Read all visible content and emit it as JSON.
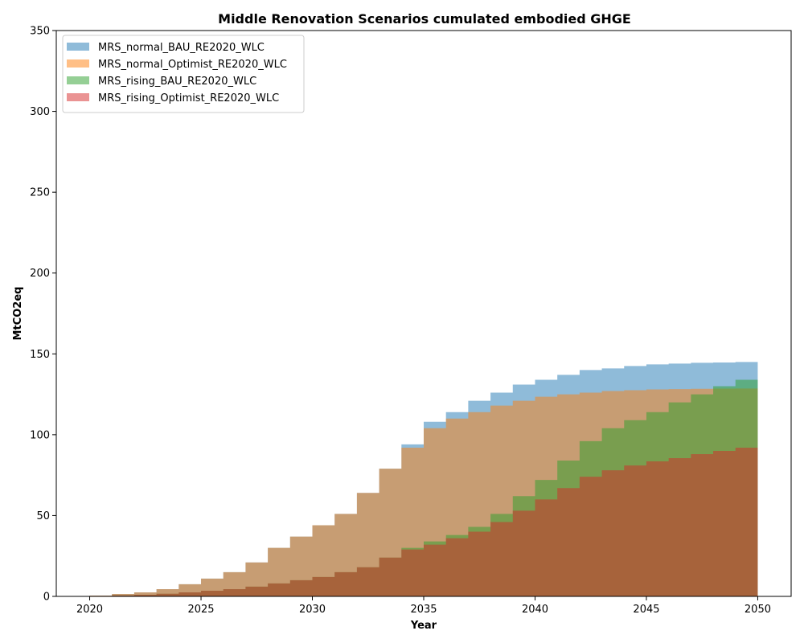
{
  "chart_data": {
    "type": "area",
    "title": "Middle Renovation Scenarios cumulated embodied GHGE",
    "xlabel": "Year",
    "ylabel": "MtCO2eq",
    "xlim": [
      2018.5,
      2051.5
    ],
    "ylim": [
      0,
      350
    ],
    "xticks": [
      2020,
      2025,
      2030,
      2035,
      2040,
      2045,
      2050
    ],
    "yticks": [
      0,
      50,
      100,
      150,
      200,
      250,
      300,
      350
    ],
    "grid": false,
    "legend_position": "top-left",
    "step": "post",
    "x": [
      2020,
      2021,
      2022,
      2023,
      2024,
      2025,
      2026,
      2027,
      2028,
      2029,
      2030,
      2031,
      2032,
      2033,
      2034,
      2035,
      2036,
      2037,
      2038,
      2039,
      2040,
      2041,
      2042,
      2043,
      2044,
      2045,
      2046,
      2047,
      2048,
      2049,
      2050
    ],
    "series": [
      {
        "name": "MRS_normal_BAU_RE2020_WLC",
        "color": "#1f77b4",
        "values": [
          0.5,
          1.5,
          2.5,
          4.5,
          7.5,
          11,
          15,
          21,
          30,
          37,
          44,
          51,
          64,
          79,
          94,
          108,
          114,
          121,
          126,
          131,
          134,
          137,
          140,
          141,
          142.5,
          143.5,
          144,
          144.5,
          144.7,
          145,
          145
        ]
      },
      {
        "name": "MRS_normal_Optimist_RE2020_WLC",
        "color": "#ff7f0e",
        "values": [
          0.5,
          1.5,
          2.5,
          4.5,
          7.5,
          11,
          15,
          21,
          30,
          37,
          44,
          51,
          64,
          79,
          92,
          104,
          110,
          114,
          118,
          121,
          123.5,
          125,
          126,
          127,
          127.5,
          128,
          128.2,
          128.4,
          128.5,
          128.6,
          128.6
        ]
      },
      {
        "name": "MRS_rising_BAU_RE2020_WLC",
        "color": "#2ca02c",
        "values": [
          0.2,
          0.6,
          1,
          1.6,
          2.5,
          3.5,
          4.5,
          6,
          8,
          10,
          12,
          15,
          18,
          24,
          30,
          34,
          38,
          43,
          51,
          62,
          72,
          84,
          96,
          104,
          109,
          114,
          120,
          125,
          130,
          134,
          137
        ]
      },
      {
        "name": "MRS_rising_Optimist_RE2020_WLC",
        "color": "#d62728",
        "values": [
          0.2,
          0.6,
          1,
          1.6,
          2.5,
          3.5,
          4.5,
          6,
          8,
          10,
          12,
          15,
          18,
          24,
          29,
          32,
          36,
          40,
          46,
          53,
          60,
          67,
          74,
          78,
          81,
          83.5,
          85.5,
          88,
          90,
          92,
          93
        ]
      }
    ]
  }
}
